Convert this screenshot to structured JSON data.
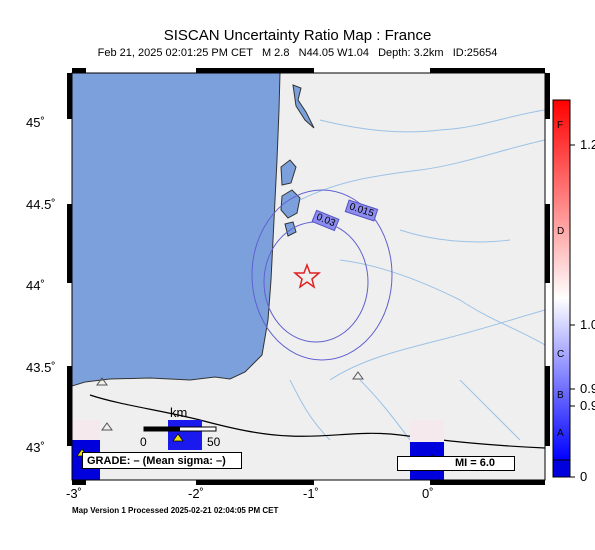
{
  "header": {
    "title": "SISCAN Uncertainty Ratio Map : France",
    "subtitle": "Feb 21, 2025 02:01:25 PM CET   M 2.8   N44.05 W1.04   Depth: 3.2km   ID:25654"
  },
  "map": {
    "y_labels": [
      "45˚",
      "44.5˚",
      "44˚",
      "43.5˚",
      "43˚"
    ],
    "x_labels": [
      "-3˚",
      "-2˚",
      "-1˚",
      "0˚"
    ],
    "contours": [
      "0.015",
      "0.03"
    ],
    "scale": {
      "unit": "km",
      "left": "0",
      "right": "50"
    },
    "grade_text": "GRADE: – (Mean sigma: –)",
    "mi_text": "MI = 6.0",
    "epicenter_icon": "star-icon",
    "station_icon": "triangle-icon"
  },
  "colorbar": {
    "tick_labels": [
      "1.2",
      "1.0",
      "0.9",
      "0.9",
      "0"
    ],
    "grade_letters": [
      "F",
      "D",
      "C",
      "B",
      "A"
    ],
    "colors": {
      "top": "#ff0000",
      "mid": "#ffffff",
      "bottom": "#0000ff"
    }
  },
  "footer": "Map Version 1 Processed 2025-02-21 02:04:05 PM CET"
}
